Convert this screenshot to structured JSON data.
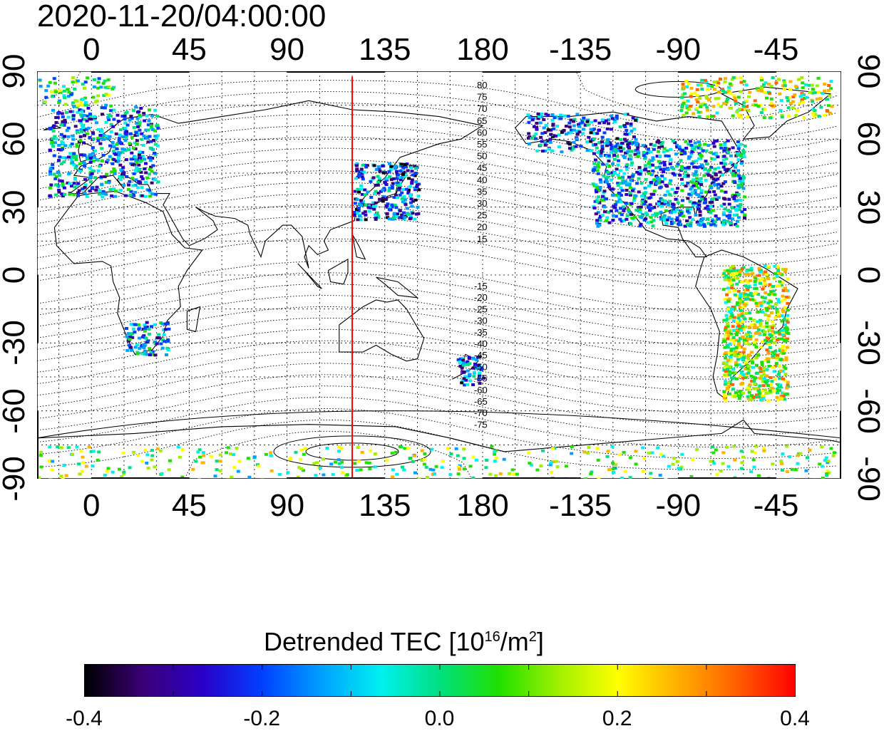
{
  "title": "2020-11-20/04:00:00",
  "lon_ticks": [
    "0",
    "45",
    "90",
    "135",
    "180",
    "-135",
    "-90",
    "-45"
  ],
  "lon_tick_values": [
    0,
    45,
    90,
    135,
    180,
    225,
    270,
    315
  ],
  "lat_ticks": [
    "90",
    "60",
    "30",
    "0",
    "-30",
    "-60",
    "-90"
  ],
  "lat_tick_values": [
    90,
    60,
    30,
    0,
    -30,
    -60,
    -90
  ],
  "mag_lat_labels_north": [
    "80",
    "75",
    "70",
    "65",
    "60",
    "55",
    "50",
    "45",
    "40",
    "35",
    "30",
    "25",
    "20",
    "15"
  ],
  "mag_lat_labels_south": [
    "-15",
    "-20",
    "-25",
    "-30",
    "-35",
    "-40",
    "-45",
    "-50",
    "-55",
    "-60",
    "-65",
    "-70",
    "-75"
  ],
  "colorbar": {
    "label_prefix": "Detrended TEC  [10",
    "label_exp": "16",
    "label_mid": "/m",
    "label_exp2": "2",
    "label_suffix": "]",
    "ticks": [
      "-0.4",
      "-0.2",
      "0.0",
      "0.2",
      "0.4"
    ],
    "tick_values": [
      -0.4,
      -0.2,
      0.0,
      0.2,
      0.4
    ],
    "colors": [
      "#000000",
      "#3a0078",
      "#2a00c8",
      "#0040ff",
      "#00a0ff",
      "#00f0f0",
      "#00e080",
      "#20e000",
      "#a0f000",
      "#ffff00",
      "#ffb000",
      "#ff6000",
      "#ff0000"
    ]
  },
  "map": {
    "lon_range": [
      -25,
      345
    ],
    "lat_range": [
      -90,
      90
    ],
    "terminator_lon": 120,
    "terminator_color": "#ff0000"
  }
}
